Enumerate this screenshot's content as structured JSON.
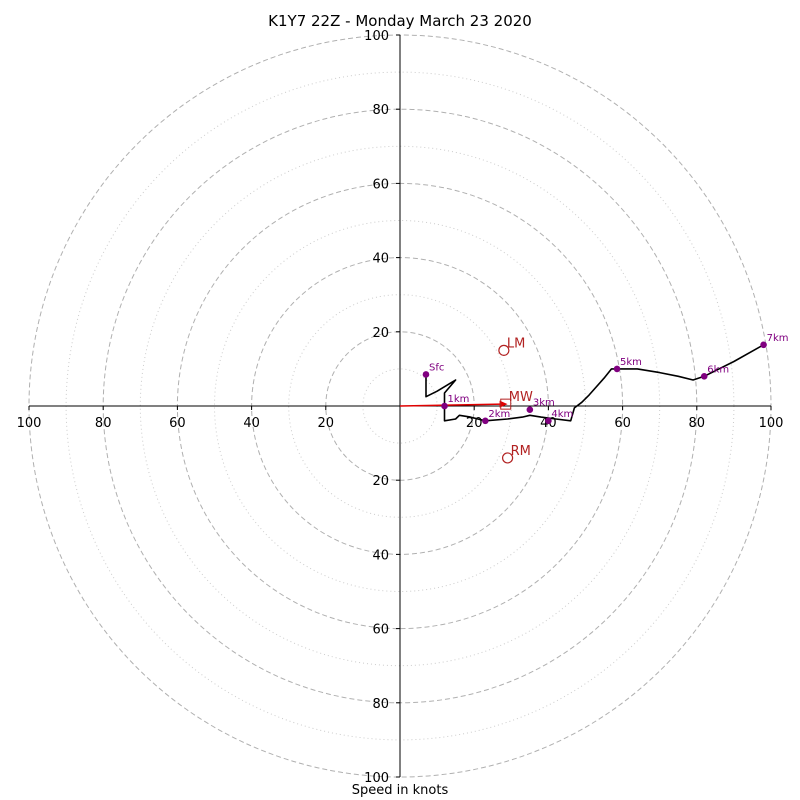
{
  "chart_data": {
    "type": "hodograph",
    "title": "K1Y7 22Z - Monday March 23 2020",
    "xlabel": "Speed in knots",
    "ylabel": "",
    "range_max": 100,
    "ring_major": [
      20,
      40,
      60,
      80,
      100
    ],
    "ring_minor": [
      10,
      30,
      50,
      70,
      90
    ],
    "tick_labels": {
      "left": [
        "100",
        "80",
        "60",
        "40",
        "20"
      ],
      "right": [
        "20",
        "40",
        "60",
        "80",
        "100"
      ],
      "top": [
        "100",
        "80",
        "60",
        "40",
        "20"
      ],
      "bottom": [
        "20",
        "40",
        "60",
        "80",
        "100"
      ]
    },
    "trace_uv": [
      [
        7,
        8.5
      ],
      [
        7,
        2.5
      ],
      [
        10,
        4
      ],
      [
        15,
        7
      ],
      [
        12,
        3.5
      ],
      [
        12,
        0.5
      ],
      [
        12,
        -4
      ],
      [
        15,
        -3.5
      ],
      [
        16,
        -2.5
      ],
      [
        19,
        -3
      ],
      [
        23,
        -4
      ],
      [
        29,
        -3.5
      ],
      [
        33,
        -3
      ],
      [
        35,
        -2.5
      ],
      [
        38,
        -3
      ],
      [
        42,
        -3.5
      ],
      [
        46,
        -4
      ],
      [
        47,
        -0.5
      ],
      [
        49,
        1
      ],
      [
        51,
        3
      ],
      [
        55,
        7.5
      ],
      [
        57,
        10
      ],
      [
        59,
        10
      ],
      [
        64,
        10
      ],
      [
        70,
        9
      ],
      [
        75,
        8
      ],
      [
        79,
        7
      ],
      [
        82,
        8
      ],
      [
        90,
        12
      ],
      [
        98,
        16.5
      ]
    ],
    "height_marks": [
      {
        "label": "Sfc",
        "u": 7,
        "v": 8.5
      },
      {
        "label": "1km",
        "u": 12,
        "v": 0
      },
      {
        "label": "2km",
        "u": 23,
        "v": -4
      },
      {
        "label": "3km",
        "u": 35,
        "v": -1
      },
      {
        "label": "4km",
        "u": 40,
        "v": -4
      },
      {
        "label": "5km",
        "u": 58.5,
        "v": 10
      },
      {
        "label": "6km",
        "u": 82,
        "v": 8
      },
      {
        "label": "7km",
        "u": 98,
        "v": 16.5
      }
    ],
    "motions": [
      {
        "label": "LM",
        "u": 28,
        "v": 15,
        "marker": "circle"
      },
      {
        "label": "MW",
        "u": 28.5,
        "v": 0.5,
        "marker": "square"
      },
      {
        "label": "RM",
        "u": 29,
        "v": -14,
        "marker": "circle"
      }
    ],
    "shear_vector": {
      "u": 29,
      "v": 0.5
    },
    "colors": {
      "trace": "#000000",
      "height_point": "#800080",
      "motion": "#b22222",
      "shear_vector": "#e00000",
      "ring": "#b0b0b0"
    }
  }
}
